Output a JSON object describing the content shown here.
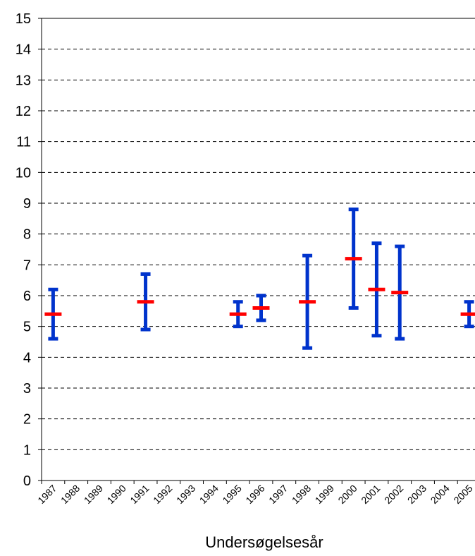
{
  "chart_data": {
    "type": "errorbar",
    "x_label": "Undersøgelsesår",
    "categories": [
      "1987",
      "1988",
      "1989",
      "1990",
      "1991",
      "1992",
      "1993",
      "1994",
      "1995",
      "1996",
      "1997",
      "1998",
      "1999",
      "2000",
      "2001",
      "2002",
      "2003",
      "2004",
      "2005"
    ],
    "values": [
      5.4,
      null,
      null,
      null,
      5.8,
      null,
      null,
      null,
      5.4,
      5.6,
      null,
      5.8,
      null,
      7.2,
      6.2,
      6.1,
      null,
      null,
      5.4
    ],
    "lows": [
      4.6,
      null,
      null,
      null,
      4.9,
      null,
      null,
      null,
      5.0,
      5.2,
      null,
      4.3,
      null,
      5.6,
      4.7,
      4.6,
      null,
      null,
      5.0
    ],
    "highs": [
      6.2,
      null,
      null,
      null,
      6.7,
      null,
      null,
      null,
      5.8,
      6.0,
      null,
      7.3,
      null,
      8.8,
      7.7,
      7.6,
      null,
      null,
      5.8
    ],
    "mean_color": "#ff0000",
    "range_color": "#0033cc",
    "ylim": [
      0,
      15
    ],
    "yticks": [
      0,
      1,
      2,
      3,
      4,
      5,
      6,
      7,
      8,
      9,
      10,
      11,
      12,
      13,
      14,
      15
    ],
    "grid": true
  }
}
